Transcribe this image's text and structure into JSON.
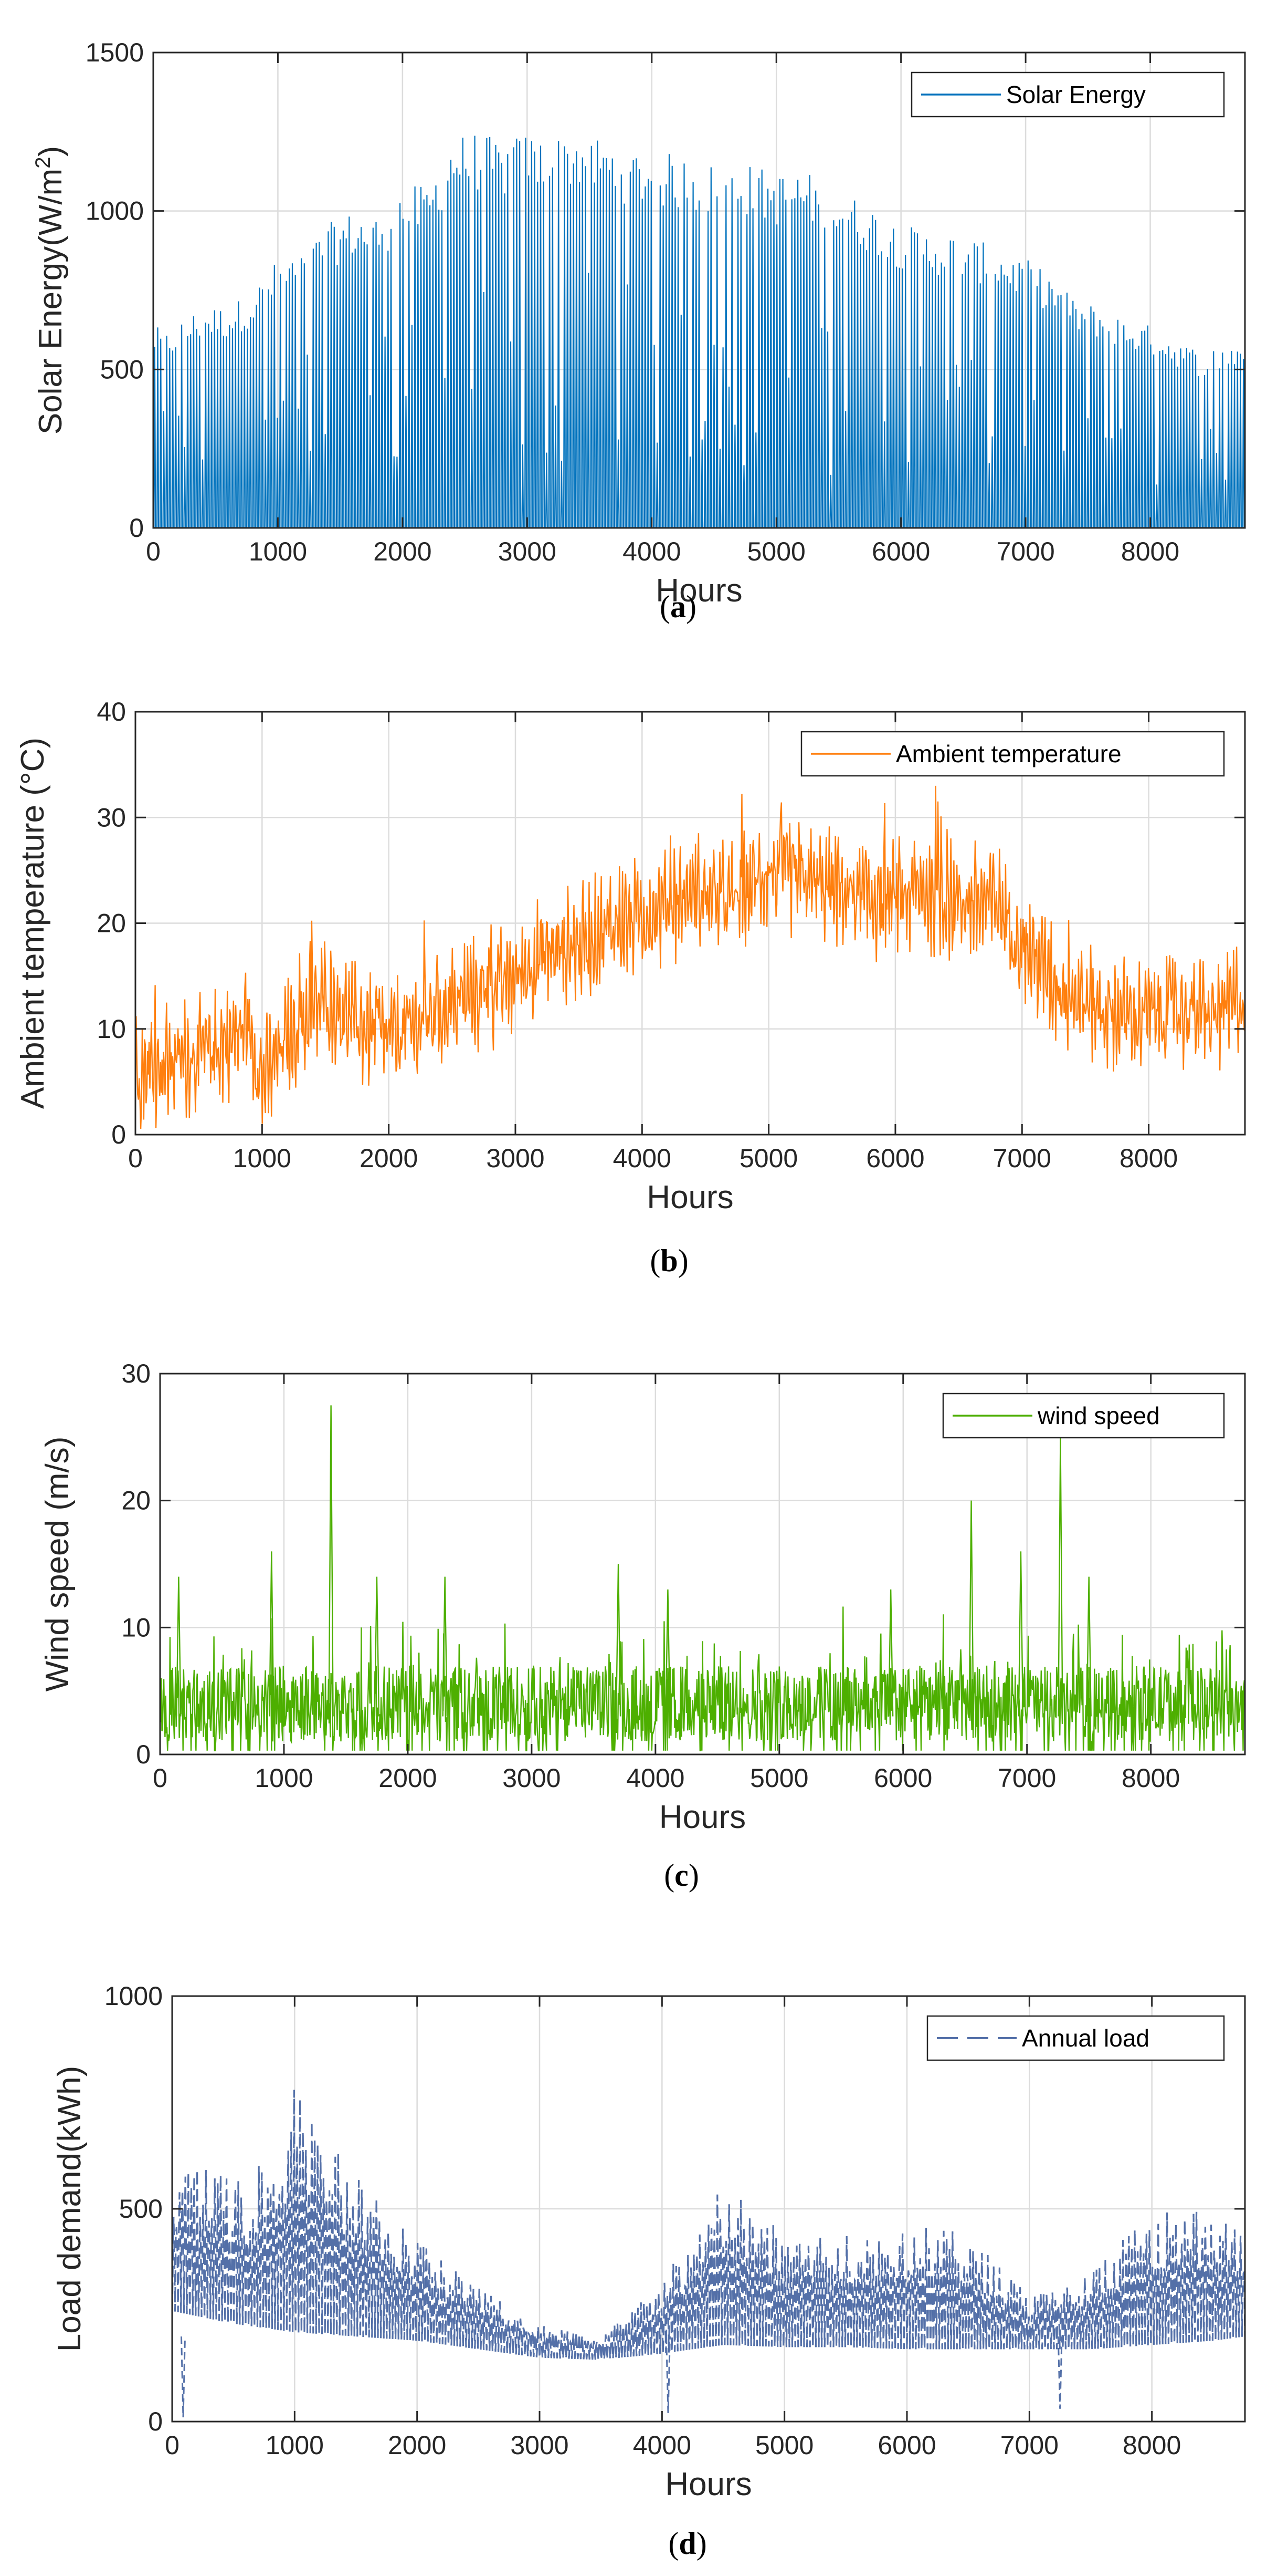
{
  "chart_data": [
    {
      "type": "line",
      "id": "a",
      "caption": "a",
      "series_name": "Solar Energy",
      "color": "#0072bd",
      "style": "solid",
      "xlabel": "Hours",
      "ylabel": "Solar Energy(W/m",
      "ylabel_sup": "2",
      "ylabel_close": ")",
      "xlim": [
        0,
        8760
      ],
      "ylim": [
        0,
        1500
      ],
      "xticks": [
        "0",
        "1000",
        "2000",
        "3000",
        "4000",
        "5000",
        "6000",
        "7000",
        "8000"
      ],
      "yticks": [
        "0",
        "500",
        "1000",
        "1500"
      ],
      "grid": true,
      "legend_position": "top-right",
      "envelope_x": [
        0,
        100,
        200,
        400,
        600,
        800,
        1000,
        1200,
        1400,
        1600,
        1800,
        2000,
        2200,
        2400,
        2600,
        2800,
        3000,
        3200,
        3400,
        3600,
        3800,
        4000,
        4200,
        4400,
        4600,
        4800,
        5000,
        5200,
        5400,
        5600,
        5800,
        6000,
        6200,
        6400,
        6600,
        6800,
        7000,
        7200,
        7400,
        7600,
        7800,
        8000,
        8200,
        8400,
        8600,
        8760
      ],
      "envelope_y": [
        640,
        620,
        650,
        700,
        700,
        750,
        850,
        870,
        960,
        1000,
        990,
        1080,
        1080,
        1240,
        1250,
        1220,
        1250,
        1230,
        1260,
        1230,
        1200,
        1190,
        1180,
        1160,
        1140,
        1150,
        1120,
        1130,
        1100,
        1050,
        1010,
        960,
        940,
        930,
        910,
        880,
        850,
        800,
        720,
        700,
        660,
        640,
        600,
        560,
        580,
        600
      ]
    },
    {
      "type": "line",
      "id": "b",
      "caption": "b",
      "series_name": "Ambient temperature",
      "color": "#ff7f0e",
      "style": "solid",
      "xlabel": "Hours",
      "ylabel": "Ambient temperature (°C)",
      "xlim": [
        0,
        8760
      ],
      "ylim": [
        0,
        40
      ],
      "xticks": [
        "0",
        "1000",
        "2000",
        "3000",
        "4000",
        "5000",
        "6000",
        "7000",
        "8000"
      ],
      "yticks": [
        "0",
        "10",
        "20",
        "30",
        "40"
      ],
      "grid": true,
      "legend_position": "top-right",
      "trend_x": [
        0,
        300,
        600,
        900,
        1000,
        1200,
        1500,
        1800,
        2000,
        2300,
        2600,
        2900,
        3200,
        3500,
        3800,
        4100,
        4400,
        4700,
        5000,
        5300,
        5600,
        5900,
        6200,
        6500,
        6800,
        7000,
        7300,
        7600,
        7900,
        8200,
        8500,
        8760
      ],
      "trend_y": [
        6,
        7,
        8,
        10,
        5,
        9,
        13,
        10,
        9,
        11,
        13,
        14,
        17,
        18,
        20,
        21,
        23,
        22,
        25,
        24,
        23,
        22,
        23,
        22,
        22,
        18,
        14,
        12,
        11,
        12,
        11,
        13
      ]
    },
    {
      "type": "line",
      "id": "c",
      "caption": "c",
      "series_name": "wind speed",
      "color": "#4daf00",
      "style": "solid",
      "xlabel": "Hours",
      "ylabel": "Wind speed (m/s)",
      "xlim": [
        0,
        8760
      ],
      "ylim": [
        0,
        30
      ],
      "xticks": [
        "0",
        "1000",
        "2000",
        "3000",
        "4000",
        "5000",
        "6000",
        "7000",
        "8000"
      ],
      "yticks": [
        "0",
        "10",
        "20",
        "30"
      ],
      "grid": true,
      "legend_position": "top-right",
      "mean_level": 4,
      "spikes_x": [
        150,
        900,
        1380,
        1750,
        2300,
        3700,
        4100,
        5900,
        6550,
        6950,
        7270,
        7500
      ],
      "spikes_y": [
        14,
        16,
        27.5,
        14,
        14,
        15,
        13,
        13,
        20,
        16,
        25,
        14
      ]
    },
    {
      "type": "line",
      "id": "d",
      "caption": "d",
      "series_name": "Annual load",
      "color": "#5470a8",
      "style": "dashed",
      "xlabel": "Hours",
      "ylabel": "Load demand(kWh)",
      "xlim": [
        0,
        8760
      ],
      "ylim": [
        0,
        1000
      ],
      "xticks": [
        "0",
        "1000",
        "2000",
        "3000",
        "4000",
        "5000",
        "6000",
        "7000",
        "8000"
      ],
      "yticks": [
        "0",
        "500",
        "1000"
      ],
      "grid": true,
      "legend_position": "top-right",
      "base_x": [
        0,
        500,
        1000,
        1500,
        2000,
        2500,
        3000,
        3500,
        4000,
        4500,
        5000,
        5500,
        6000,
        6500,
        7000,
        7500,
        8000,
        8500,
        8760
      ],
      "base_y": [
        260,
        230,
        210,
        200,
        190,
        170,
        150,
        145,
        160,
        180,
        175,
        175,
        170,
        170,
        170,
        170,
        180,
        190,
        200
      ],
      "peak_x": [
        0,
        300,
        600,
        1000,
        1300,
        1600,
        2000,
        2500,
        3000,
        3500,
        4000,
        4500,
        5000,
        5500,
        6000,
        6500,
        7000,
        7500,
        8000,
        8500,
        8760
      ],
      "peak_y": [
        600,
        620,
        560,
        790,
        650,
        560,
        430,
        320,
        230,
        200,
        330,
        560,
        450,
        450,
        470,
        440,
        300,
        350,
        500,
        500,
        460
      ]
    }
  ]
}
